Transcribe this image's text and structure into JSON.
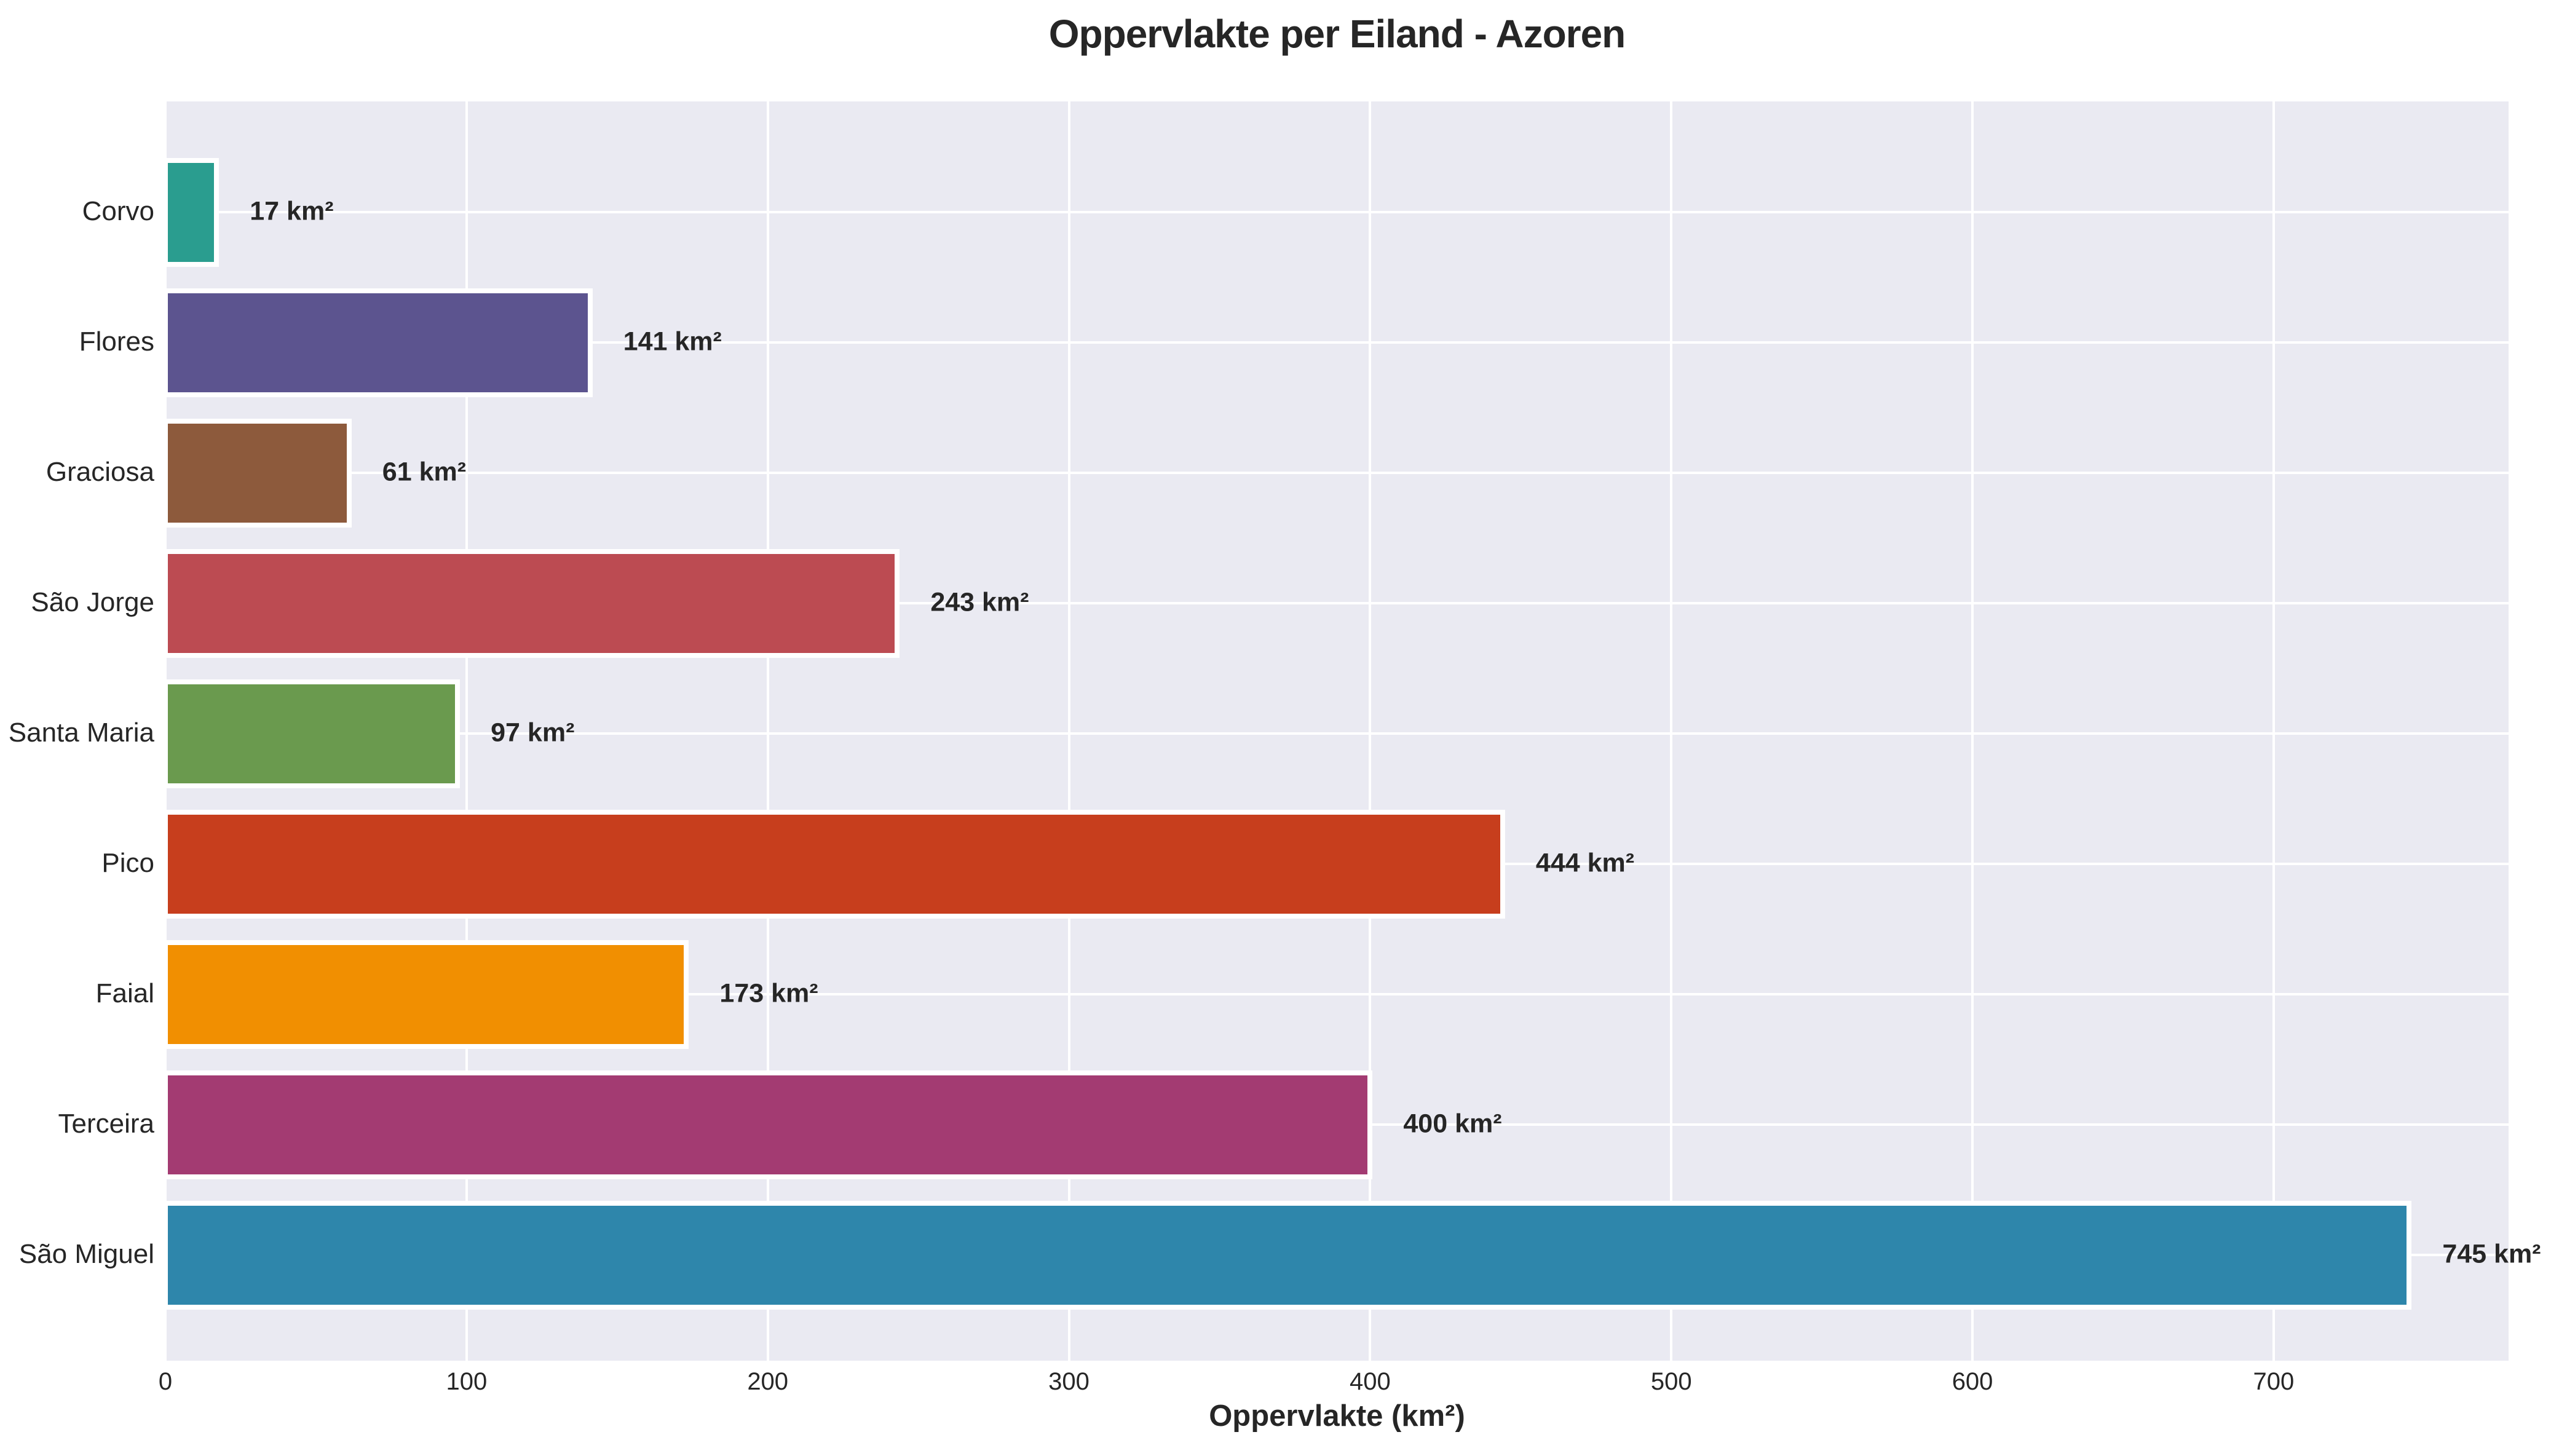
{
  "chart_data": {
    "type": "bar",
    "orientation": "horizontal",
    "title": "Oppervlakte per Eiland - Azoren",
    "xlabel": "Oppervlakte (km²)",
    "ylabel": "",
    "categories": [
      "Corvo",
      "Flores",
      "Graciosa",
      "São Jorge",
      "Santa Maria",
      "Pico",
      "Faial",
      "Terceira",
      "São Miguel"
    ],
    "values": [
      17,
      141,
      61,
      243,
      97,
      444,
      173,
      400,
      745
    ],
    "value_labels": [
      "17 km²",
      "141 km²",
      "61 km²",
      "243 km²",
      "97 km²",
      "444 km²",
      "173 km²",
      "400 km²",
      "745 km²"
    ],
    "bar_colors": [
      "#2A9D8F",
      "#5C548F",
      "#8D5A3C",
      "#BC4B52",
      "#6A9A4E",
      "#C73E1D",
      "#F18F01",
      "#A33B72",
      "#2E86AB"
    ],
    "xticks": [
      0,
      100,
      200,
      300,
      400,
      500,
      600,
      700
    ],
    "xtick_labels": [
      "0",
      "100",
      "200",
      "300",
      "400",
      "500",
      "600",
      "700"
    ],
    "xlim": [
      0,
      778
    ],
    "grid": true,
    "legend": false,
    "plot_background_color": "#EAEAF2",
    "grid_color": "#FFFFFF",
    "text_color": "#262626",
    "bar_edge_color": "#FFFFFF"
  }
}
